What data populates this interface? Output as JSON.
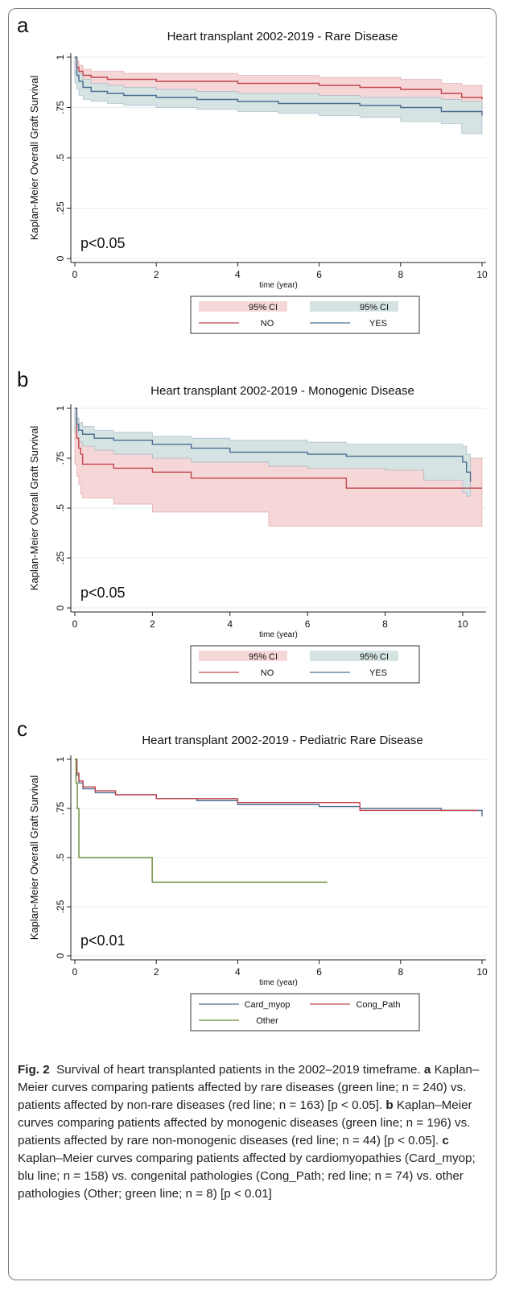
{
  "figure": {
    "caption": {
      "fig_label": "Fig. 2",
      "intro": "Survival of heart transplanted patients in the 2002–2019 timeframe.",
      "a_letter": "a",
      "a_text": "Kaplan–Meier curves comparing patients affected by rare diseases (green line; n = 240) vs. patients affected by non-rare diseases (red line; n = 163) [p < 0.05].",
      "b_letter": "b",
      "b_text": "Kaplan–Meier curves comparing patients affected by monogenic diseases (green line; n = 196) vs. patients affected by rare non-monogenic diseases (red line; n = 44) [p < 0.05].",
      "c_letter": "c",
      "c_text": "Kaplan–Meier curves comparing patients affected by cardiomyopathies (Card_myop; blu line; n = 158) vs. congenital pathologies (Cong_Path; red line; n = 74) vs. other pathologies (Other; green line; n = 8) [p < 0.01]"
    }
  },
  "colors": {
    "red_line": "#c0454d",
    "blue_line": "#4a6d8f",
    "green_line": "#6b8a3a",
    "red_ci": "#f6d7d8",
    "blue_ci": "#d6e3e3",
    "grid": "#e6eeee"
  },
  "chart_data": [
    {
      "type": "line",
      "panel_letter": "a",
      "title": "Heart transplant 2002-2019 - Rare Disease",
      "xlabel": "time (year)",
      "ylabel": "Kaplan-Meier Overall Graft Survival",
      "xlim": [
        0,
        10
      ],
      "ylim": [
        0,
        1
      ],
      "x_ticks": [
        "0",
        "2",
        "4",
        "6",
        "8",
        "10"
      ],
      "y_ticks": [
        "0",
        ".25",
        ".5",
        ".75",
        "1"
      ],
      "annotation": "p<0.05",
      "legend": [
        {
          "label": "95% CI",
          "kind": "ci",
          "color": "red"
        },
        {
          "label": "95% CI",
          "kind": "ci",
          "color": "blue"
        },
        {
          "label": "NO",
          "kind": "line",
          "color": "red"
        },
        {
          "label": "YES",
          "kind": "line",
          "color": "blue"
        }
      ],
      "series": [
        {
          "name": "NO",
          "color": "red",
          "x": [
            0,
            0.05,
            0.1,
            0.2,
            0.4,
            0.8,
            1.2,
            2.0,
            4.0,
            6.0,
            7.0,
            8.0,
            9.0,
            9.5,
            10.0
          ],
          "y": [
            1.0,
            0.95,
            0.93,
            0.91,
            0.9,
            0.89,
            0.89,
            0.88,
            0.87,
            0.86,
            0.85,
            0.84,
            0.82,
            0.8,
            0.79
          ],
          "ci_lower": [
            1.0,
            0.92,
            0.9,
            0.88,
            0.86,
            0.85,
            0.85,
            0.84,
            0.82,
            0.81,
            0.8,
            0.78,
            0.76,
            0.74,
            0.72
          ],
          "ci_upper": [
            1.0,
            0.98,
            0.96,
            0.94,
            0.93,
            0.93,
            0.92,
            0.92,
            0.91,
            0.9,
            0.9,
            0.89,
            0.87,
            0.86,
            0.85
          ]
        },
        {
          "name": "YES",
          "color": "blue",
          "x": [
            0,
            0.05,
            0.1,
            0.2,
            0.4,
            0.8,
            1.2,
            2.0,
            3.0,
            4.0,
            5.0,
            6.0,
            7.0,
            8.0,
            9.0,
            9.5,
            10.0
          ],
          "y": [
            1.0,
            0.91,
            0.88,
            0.85,
            0.83,
            0.82,
            0.81,
            0.8,
            0.79,
            0.78,
            0.77,
            0.77,
            0.76,
            0.75,
            0.73,
            0.73,
            0.71
          ],
          "ci_lower": [
            1.0,
            0.87,
            0.84,
            0.81,
            0.79,
            0.78,
            0.77,
            0.76,
            0.75,
            0.74,
            0.73,
            0.72,
            0.71,
            0.7,
            0.68,
            0.67,
            0.62
          ],
          "ci_upper": [
            1.0,
            0.94,
            0.92,
            0.89,
            0.87,
            0.86,
            0.85,
            0.84,
            0.83,
            0.82,
            0.82,
            0.81,
            0.8,
            0.8,
            0.79,
            0.78,
            0.78
          ]
        }
      ]
    },
    {
      "type": "line",
      "panel_letter": "b",
      "title": "Heart transplant 2002-2019 - Monogenic Disease",
      "xlabel": "time (year)",
      "ylabel": "Kaplan-Meier Overall Graft Survival",
      "xlim": [
        0,
        10.5
      ],
      "ylim": [
        0,
        1
      ],
      "x_ticks": [
        "0",
        "2",
        "4",
        "6",
        "8",
        "10"
      ],
      "y_ticks": [
        "0",
        ".25",
        ".5",
        ".75",
        "1"
      ],
      "annotation": "p<0.05",
      "legend": [
        {
          "label": "95% CI",
          "kind": "ci",
          "color": "red"
        },
        {
          "label": "95% CI",
          "kind": "ci",
          "color": "blue"
        },
        {
          "label": "NO",
          "kind": "line",
          "color": "red"
        },
        {
          "label": "YES",
          "kind": "line",
          "color": "blue"
        }
      ],
      "series": [
        {
          "name": "NO",
          "color": "red",
          "x": [
            0,
            0.05,
            0.1,
            0.15,
            0.2,
            1.0,
            2.0,
            3.0,
            5.0,
            7.0,
            9.0,
            10.5
          ],
          "y": [
            1.0,
            0.85,
            0.8,
            0.77,
            0.72,
            0.7,
            0.68,
            0.65,
            0.65,
            0.6,
            0.6,
            0.6
          ],
          "ci_lower": [
            1.0,
            0.72,
            0.66,
            0.62,
            0.57,
            0.55,
            0.52,
            0.48,
            0.48,
            0.41,
            0.41,
            0.41
          ],
          "ci_upper": [
            1.0,
            0.95,
            0.91,
            0.88,
            0.85,
            0.83,
            0.81,
            0.79,
            0.78,
            0.75,
            0.75,
            0.75
          ]
        },
        {
          "name": "YES",
          "color": "blue",
          "x": [
            0,
            0.05,
            0.1,
            0.2,
            0.5,
            1.0,
            2.0,
            3.0,
            4.0,
            5.0,
            6.0,
            7.0,
            8.0,
            9.0,
            10.0,
            10.1,
            10.2
          ],
          "y": [
            1.0,
            0.92,
            0.89,
            0.87,
            0.85,
            0.84,
            0.82,
            0.8,
            0.78,
            0.78,
            0.77,
            0.76,
            0.76,
            0.76,
            0.73,
            0.68,
            0.63
          ],
          "ci_lower": [
            1.0,
            0.88,
            0.85,
            0.83,
            0.81,
            0.79,
            0.77,
            0.75,
            0.73,
            0.73,
            0.71,
            0.7,
            0.7,
            0.69,
            0.64,
            0.58,
            0.56
          ],
          "ci_upper": [
            1.0,
            0.95,
            0.93,
            0.91,
            0.89,
            0.88,
            0.86,
            0.85,
            0.84,
            0.84,
            0.83,
            0.82,
            0.82,
            0.82,
            0.81,
            0.77,
            0.72
          ]
        }
      ]
    },
    {
      "type": "line",
      "panel_letter": "c",
      "title": "Heart transplant 2002-2019 - Pediatric Rare Disease",
      "xlabel": "time (year)",
      "ylabel": "Kaplan-Meier Overall Graft Survival",
      "xlim": [
        0,
        10
      ],
      "ylim": [
        0,
        1
      ],
      "x_ticks": [
        "0",
        "2",
        "4",
        "6",
        "8",
        "10"
      ],
      "y_ticks": [
        "0",
        ".25",
        ".5",
        ".75",
        "1"
      ],
      "annotation": "p<0.01",
      "legend": [
        {
          "label": "Card_myop",
          "kind": "line",
          "color": "blue"
        },
        {
          "label": "Cong_Path",
          "kind": "line",
          "color": "red"
        },
        {
          "label": "Other",
          "kind": "line",
          "color": "green"
        }
      ],
      "series": [
        {
          "name": "Card_myop",
          "color": "blue",
          "x": [
            0,
            0.05,
            0.1,
            0.2,
            0.5,
            1.0,
            2.0,
            3.0,
            4.0,
            5.0,
            6.0,
            7.0,
            8.0,
            9.0,
            9.9,
            10.0
          ],
          "y": [
            1.0,
            0.92,
            0.88,
            0.85,
            0.83,
            0.82,
            0.8,
            0.79,
            0.77,
            0.77,
            0.76,
            0.75,
            0.75,
            0.74,
            0.74,
            0.71
          ],
          "ci_lower": [],
          "ci_upper": []
        },
        {
          "name": "Cong_Path",
          "color": "red",
          "x": [
            0,
            0.05,
            0.1,
            0.2,
            0.5,
            1.0,
            2.0,
            3.0,
            4.0,
            5.0,
            6.0,
            7.0,
            8.0,
            9.0,
            9.9
          ],
          "y": [
            1.0,
            0.93,
            0.89,
            0.86,
            0.84,
            0.82,
            0.8,
            0.8,
            0.78,
            0.78,
            0.78,
            0.74,
            0.74,
            0.74,
            0.74
          ],
          "ci_lower": [],
          "ci_upper": []
        },
        {
          "name": "Other",
          "color": "green",
          "x": [
            0,
            0.03,
            0.06,
            0.1,
            1.9,
            6.2
          ],
          "y": [
            1.0,
            0.88,
            0.75,
            0.5,
            0.375,
            0.375
          ],
          "ci_lower": [],
          "ci_upper": []
        }
      ]
    }
  ]
}
